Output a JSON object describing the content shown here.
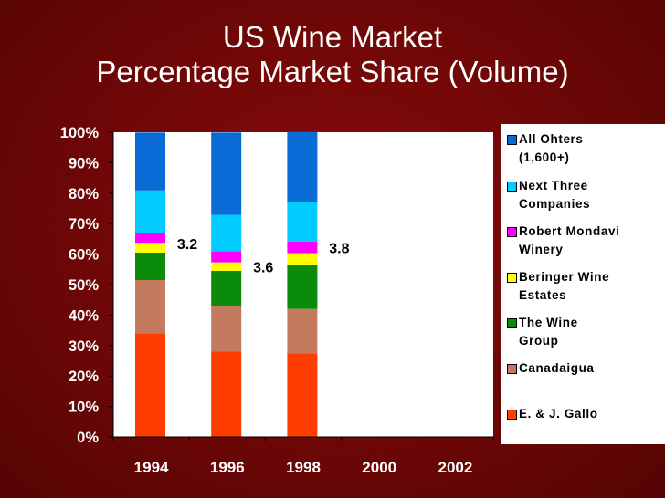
{
  "slide": {
    "title_line1": "US Wine Market",
    "title_line2": "Percentage Market Share (Volume)"
  },
  "colors": {
    "background": "#6e0707",
    "E. & J. Gallo": "#ff3d00",
    "Canadaigua": "#c47a5e",
    "The Wine Group": "#0a8c0a",
    "Beringer Wine Estates": "#ffff00",
    "Robert Mondavi Winery": "#ff00ff",
    "Next Three Companies": "#00ccff",
    "All Ohters (1,600+)": "#0a6ad6"
  },
  "chart_data": {
    "type": "bar",
    "stacked": true,
    "categories": [
      "1994",
      "1996",
      "1998",
      "2000",
      "2002"
    ],
    "ylim": [
      0,
      100
    ],
    "ytick_labels": [
      "0%",
      "10%",
      "20%",
      "30%",
      "40%",
      "50%",
      "60%",
      "70%",
      "80%",
      "90%",
      "100%"
    ],
    "grid": false,
    "legend_position": "right",
    "series": [
      {
        "name": "E. & J. Gallo",
        "values": [
          34,
          28,
          27.5,
          null,
          null
        ]
      },
      {
        "name": "Canadaigua",
        "values": [
          17.5,
          15,
          14.5,
          null,
          null
        ]
      },
      {
        "name": "The Wine Group",
        "values": [
          9,
          11.5,
          14.5,
          null,
          null
        ]
      },
      {
        "name": "Beringer Wine Estates",
        "values": [
          3.2,
          2.8,
          3.8,
          null,
          null
        ]
      },
      {
        "name": "Robert Mondavi Winery",
        "values": [
          3.2,
          3.6,
          3.8,
          null,
          null
        ]
      },
      {
        "name": "Next Three Companies",
        "values": [
          14,
          12,
          13,
          null,
          null
        ]
      },
      {
        "name": "All Ohters (1,600+)",
        "values": [
          19,
          27,
          23,
          null,
          null
        ]
      }
    ],
    "annotations": [
      {
        "category": "1994",
        "text": "3.2"
      },
      {
        "category": "1996",
        "text": "3.6"
      },
      {
        "category": "1998",
        "text": "3.8"
      }
    ]
  },
  "legend": {
    "items": [
      {
        "lines": [
          "All Ohters",
          "(1,600+)"
        ],
        "color": "#0a6ad6"
      },
      {
        "lines": [
          "Next Three",
          "Companies"
        ],
        "color": "#00ccff"
      },
      {
        "lines": [
          "Robert Mondavi",
          "Winery"
        ],
        "color": "#ff00ff"
      },
      {
        "lines": [
          "Beringer Wine",
          "Estates"
        ],
        "color": "#ffff00"
      },
      {
        "lines": [
          "The Wine",
          "Group"
        ],
        "color": "#0a8c0a"
      },
      {
        "lines": [
          "Canadaigua"
        ],
        "color": "#c47a5e"
      },
      {
        "lines": [
          "E. & J. Gallo"
        ],
        "color": "#ff3d00"
      }
    ]
  }
}
